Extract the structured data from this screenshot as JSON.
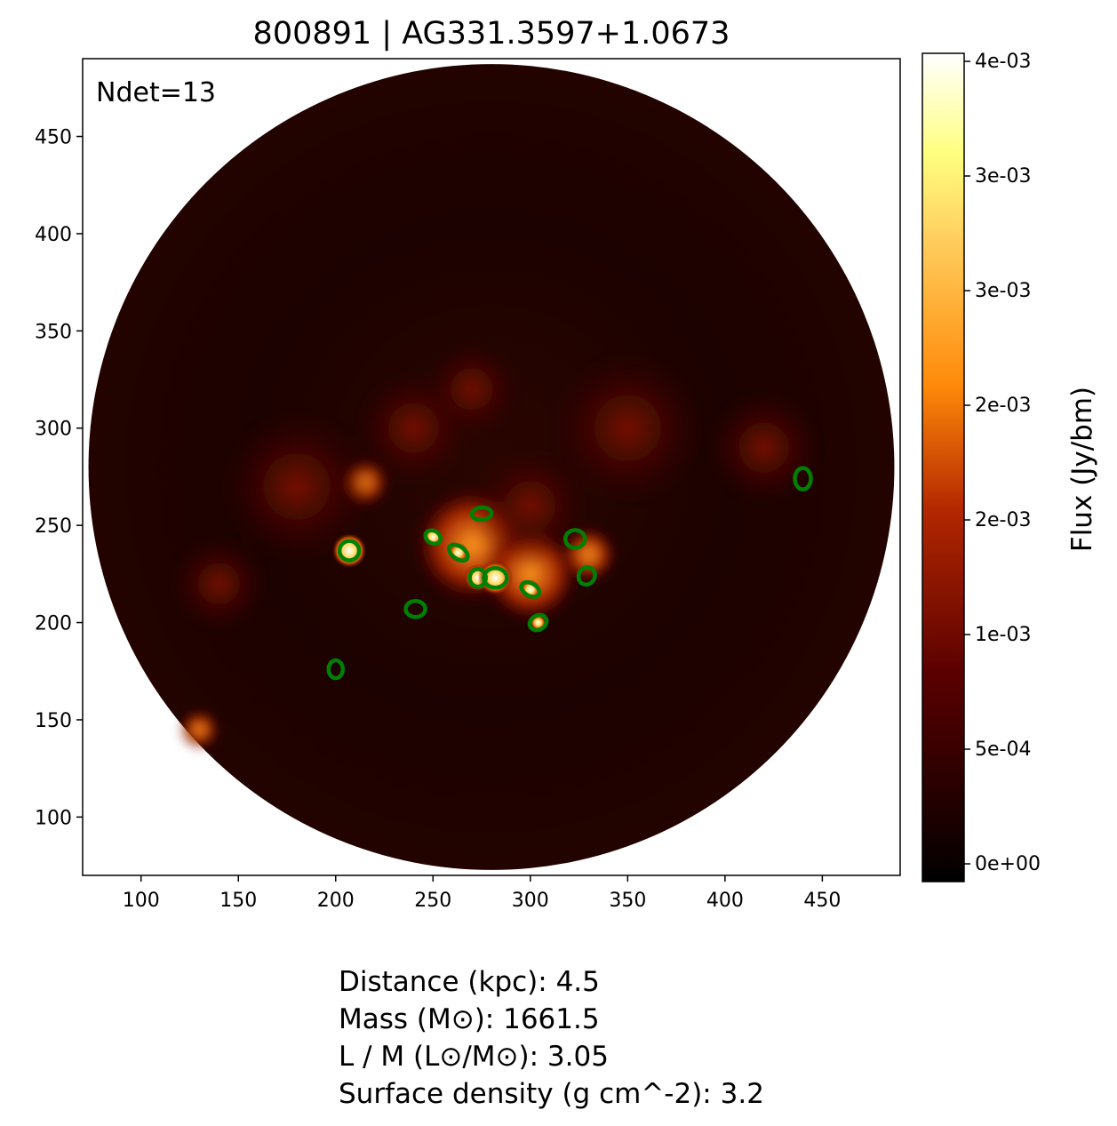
{
  "chart_data": {
    "type": "heatmap",
    "title": "800891 | AG331.3597+1.0673",
    "annotation": "Ndet=13",
    "xlim": [
      70,
      490
    ],
    "ylim": [
      70,
      490
    ],
    "xticks": [
      100,
      150,
      200,
      250,
      300,
      350,
      400,
      450
    ],
    "yticks": [
      100,
      150,
      200,
      250,
      300,
      350,
      400,
      450
    ],
    "grid": false,
    "colormap": "afmhot",
    "field_of_view": {
      "shape": "circle",
      "center": [
        280,
        280
      ],
      "radius": 207
    },
    "detections": [
      {
        "x": 440,
        "y": 274
      },
      {
        "x": 275,
        "y": 256
      },
      {
        "x": 250,
        "y": 244
      },
      {
        "x": 207,
        "y": 237
      },
      {
        "x": 263,
        "y": 236
      },
      {
        "x": 323,
        "y": 243
      },
      {
        "x": 273,
        "y": 223
      },
      {
        "x": 282,
        "y": 223
      },
      {
        "x": 300,
        "y": 217
      },
      {
        "x": 329,
        "y": 224
      },
      {
        "x": 241,
        "y": 207
      },
      {
        "x": 304,
        "y": 200
      },
      {
        "x": 200,
        "y": 176
      }
    ],
    "detection_color": "#008000",
    "colorbar": {
      "label": "Flux (Jy/bm)",
      "range": [
        -7.75e-05,
        0.003535
      ],
      "ticks": [
        0,
        0.0005,
        0.001,
        0.0015,
        0.002,
        0.0025,
        0.003,
        0.0035
      ],
      "tick_labels": [
        "0e+00",
        "5e-04",
        "1e-03",
        "2e-03",
        "2e-03",
        "3e-03",
        "3e-03",
        "4e-03"
      ]
    }
  },
  "stats": [
    "Distance (kpc): 4.5",
    "Mass (M⊙): 1661.5",
    "L / M (L⊙/M⊙): 3.05",
    "Surface density (g cm^-2): 3.2"
  ]
}
